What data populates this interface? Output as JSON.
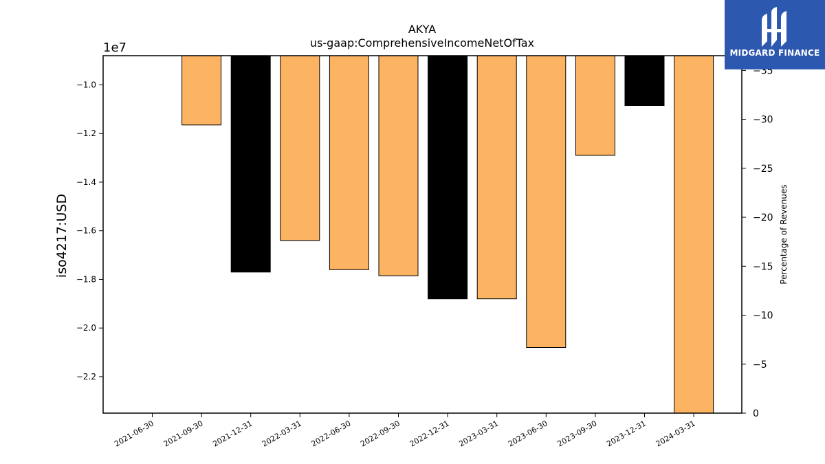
{
  "chart_data": {
    "type": "bar",
    "title": "AKYA",
    "subtitle": "us-gaap:ComprehensiveIncomeNetOfTax",
    "ylabel": "iso4217:USD",
    "y_offset_label": "1e7",
    "y2label": "Percentage of Revenues",
    "categories": [
      "2021-06-30",
      "2021-09-30",
      "2021-12-31",
      "2022-03-31",
      "2022-06-30",
      "2022-09-30",
      "2022-12-31",
      "2023-03-31",
      "2023-06-30",
      "2023-09-30",
      "2023-12-31",
      "2024-03-31"
    ],
    "values": [
      null,
      -11650000,
      -17700000,
      -16400000,
      -17600000,
      -17850000,
      -18800000,
      -18800000,
      -20800000,
      -12900000,
      -10850000,
      -23500000
    ],
    "bar_colors": [
      null,
      "#fdb462",
      "#000000",
      "#fdb462",
      "#fdb462",
      "#fdb462",
      "#000000",
      "#fdb462",
      "#fdb462",
      "#fdb462",
      "#000000",
      "#fdb462"
    ],
    "ylim": [
      -8800000,
      -23500000
    ],
    "yticks": [
      -10000000,
      -12000000,
      -14000000,
      -16000000,
      -18000000,
      -20000000,
      -22000000
    ],
    "ytick_labels": [
      "−1.0",
      "−1.2",
      "−1.4",
      "−1.6",
      "−1.8",
      "−2.0",
      "−2.2"
    ],
    "y2lim": [
      0,
      -36.5
    ],
    "y2ticks": [
      0,
      -5,
      -10,
      -15,
      -20,
      -25,
      -30,
      -35
    ],
    "y2tick_labels": [
      "0",
      "−5",
      "−10",
      "−15",
      "−20",
      "−25",
      "−30",
      "−35"
    ],
    "grid": false
  },
  "logo": {
    "text": "MIDGARD FINANCE",
    "background": "#2d58b0"
  }
}
